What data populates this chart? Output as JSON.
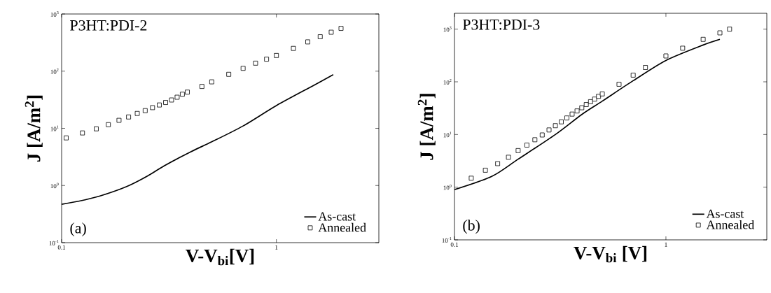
{
  "chart_data": [
    {
      "type": "line",
      "xlabel": "V-V$_{bi}$[V]",
      "ylabel": "J [A/m$^{2}$]",
      "log": "xy",
      "legend": "bottom right",
      "annotations": [
        "P3HT:PDI-2",
        "(a)"
      ],
      "xlim": [
        0.1,
        3
      ],
      "ylim": [
        0.1,
        1000
      ],
      "xticks": [
        0.1,
        1
      ],
      "yticks": [
        {
          "value": 0.1,
          "label": "10$^{-1}$"
        },
        {
          "value": 1,
          "label": "10$^{0}$"
        },
        {
          "value": 10,
          "label": "10$^{1}$"
        },
        {
          "value": 100,
          "label": "10$^{2}$"
        },
        {
          "value": 1000,
          "label": "10$^{3}$"
        }
      ],
      "series": [
        {
          "name": "As-cast",
          "color": "#000000",
          "x": [
            0.1,
            0.12,
            0.15,
            0.2,
            0.25,
            0.3,
            0.4,
            0.5,
            0.7,
            1.0,
            1.5,
            1.84
          ],
          "values": [
            0.47,
            0.53,
            0.65,
            0.95,
            1.45,
            2.2,
            3.9,
            5.8,
            11,
            25,
            57,
            87
          ]
        },
        {
          "name": "Annealed",
          "type": "scatter",
          "marker": "square",
          "color": "#000000",
          "x": [
            0.105,
            0.125,
            0.145,
            0.165,
            0.185,
            0.205,
            0.225,
            0.245,
            0.265,
            0.285,
            0.305,
            0.325,
            0.345,
            0.365,
            0.385,
            0.45,
            0.5,
            0.6,
            0.7,
            0.8,
            0.9,
            1.0,
            1.2,
            1.4,
            1.6,
            1.8,
            2.0
          ],
          "values": [
            6.8,
            8.3,
            9.8,
            11.6,
            13.8,
            15.8,
            18.2,
            20.4,
            23,
            25.6,
            28.3,
            31.3,
            35,
            39.5,
            43,
            54,
            65,
            88,
            112,
            138,
            162,
            188,
            250,
            325,
            400,
            480,
            560
          ]
        }
      ]
    },
    {
      "type": "line",
      "xlabel": "V-V$_{bi}$ [V]",
      "ylabel": "J [A/m$^{2}$]",
      "log": "xy",
      "legend": "bottom right",
      "annotations": [
        "P3HT:PDI-3",
        "(b)"
      ],
      "xlim": [
        0.1,
        3
      ],
      "ylim": [
        0.1,
        2000
      ],
      "xticks": [
        0.1,
        1
      ],
      "yticks": [
        {
          "value": 0.1,
          "label": "10$^{-1}$"
        },
        {
          "value": 1,
          "label": "10$^{0}$"
        },
        {
          "value": 10,
          "label": "10$^{1}$"
        },
        {
          "value": 100,
          "label": "10$^{2}$"
        },
        {
          "value": 1000,
          "label": "10$^{3}$"
        }
      ],
      "series": [
        {
          "name": "As-cast",
          "color": "#000000",
          "x": [
            0.1,
            0.15,
            0.2,
            0.3,
            0.4,
            0.5,
            0.7,
            1.0,
            1.5,
            1.8
          ],
          "values": [
            0.9,
            1.6,
            3.4,
            10,
            24,
            43,
            105,
            255,
            500,
            640
          ]
        },
        {
          "name": "Annealed",
          "type": "scatter",
          "marker": "square",
          "color": "#000000",
          "x": [
            0.12,
            0.14,
            0.16,
            0.18,
            0.2,
            0.22,
            0.24,
            0.26,
            0.28,
            0.3,
            0.32,
            0.34,
            0.36,
            0.38,
            0.4,
            0.42,
            0.44,
            0.46,
            0.48,
            0.5,
            0.6,
            0.7,
            0.8,
            1.0,
            1.2,
            1.5,
            1.8,
            2.0
          ],
          "values": [
            1.48,
            2.1,
            2.8,
            3.7,
            4.95,
            6.3,
            7.95,
            9.8,
            12.2,
            14.7,
            17.4,
            20.6,
            24.4,
            28,
            32.2,
            37,
            42,
            47,
            53,
            59,
            90,
            134,
            187,
            310,
            435,
            640,
            850,
            1000
          ]
        }
      ]
    }
  ]
}
